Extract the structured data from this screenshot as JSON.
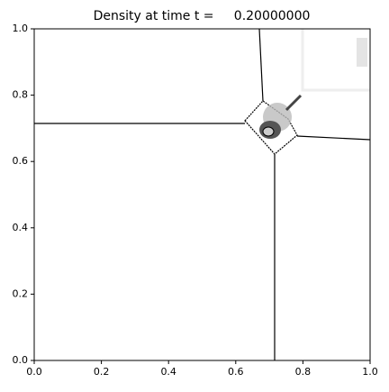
{
  "chart_data": {
    "type": "image",
    "title": "Density at time t =     0.20000000",
    "xlim": [
      0,
      1
    ],
    "ylim": [
      0,
      1
    ],
    "xticks": [
      {
        "value": 0,
        "label": "0.0"
      },
      {
        "value": 0.2,
        "label": "0.2"
      },
      {
        "value": 0.4,
        "label": "0.4"
      },
      {
        "value": 0.6,
        "label": "0.6"
      },
      {
        "value": 0.8,
        "label": "0.8"
      },
      {
        "value": 1,
        "label": "1.0"
      }
    ],
    "yticks": [
      {
        "value": 0,
        "label": "0.0"
      },
      {
        "value": 0.2,
        "label": "0.2"
      },
      {
        "value": 0.4,
        "label": "0.4"
      },
      {
        "value": 0.6,
        "label": "0.6"
      },
      {
        "value": 0.8,
        "label": "0.8"
      },
      {
        "value": 1,
        "label": "1.0"
      }
    ]
  }
}
